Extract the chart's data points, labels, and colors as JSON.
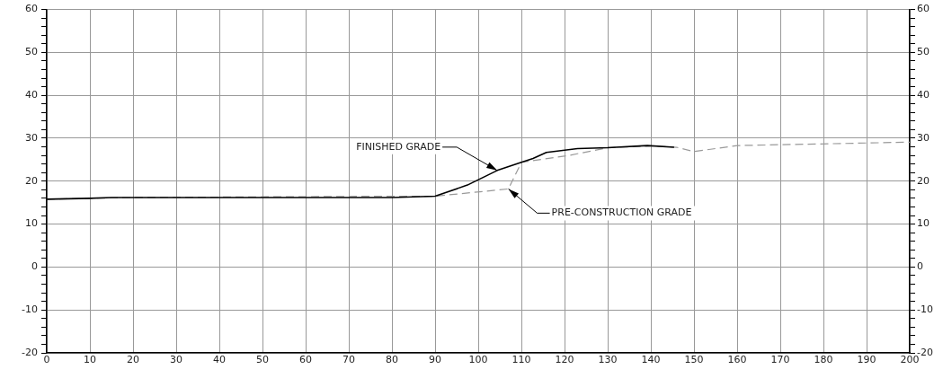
{
  "chart_data": {
    "type": "line",
    "xlim": [
      0,
      200
    ],
    "xticks": [
      0,
      10,
      20,
      30,
      40,
      50,
      60,
      70,
      80,
      90,
      100,
      110,
      120,
      130,
      140,
      150,
      160,
      170,
      180,
      190,
      200
    ],
    "ylim": [
      -20,
      60
    ],
    "yticks": [
      -20,
      {
        "value": -18,
        "label": null
      },
      {
        "value": -16,
        "label": null
      },
      {
        "value": -14,
        "label": null
      },
      {
        "value": -12,
        "label": null
      },
      -10,
      {
        "value": -8,
        "label": null
      },
      {
        "value": -6,
        "label": null
      },
      {
        "value": -4,
        "label": null
      },
      {
        "value": -2,
        "label": null
      },
      0,
      {
        "value": 2,
        "label": null
      },
      {
        "value": 4,
        "label": null
      },
      {
        "value": 6,
        "label": null
      },
      {
        "value": 8,
        "label": null
      },
      10,
      {
        "value": 12,
        "label": null
      },
      {
        "value": 14,
        "label": null
      },
      {
        "value": 16,
        "label": null
      },
      {
        "value": 18,
        "label": null
      },
      20,
      {
        "value": 22,
        "label": null
      },
      {
        "value": 24,
        "label": null
      },
      {
        "value": 26,
        "label": null
      },
      {
        "value": 28,
        "label": null
      },
      30,
      {
        "value": 32,
        "label": null
      },
      {
        "value": 34,
        "label": null
      },
      {
        "value": 36,
        "label": null
      },
      {
        "value": 38,
        "label": null
      },
      40,
      {
        "value": 42,
        "label": null
      },
      {
        "value": 44,
        "label": null
      },
      {
        "value": 46,
        "label": null
      },
      {
        "value": 48,
        "label": null
      },
      50,
      {
        "value": 52,
        "label": null
      },
      {
        "value": 54,
        "label": null
      },
      {
        "value": 56,
        "label": null
      },
      {
        "value": 58,
        "label": null
      },
      60
    ],
    "y2lim": [
      -20,
      60
    ],
    "y2ticks": [
      -20,
      {
        "value": -18,
        "label": null
      },
      {
        "value": -16,
        "label": null
      },
      {
        "value": -14,
        "label": null
      },
      {
        "value": -12,
        "label": null
      },
      -10,
      {
        "value": -8,
        "label": null
      },
      {
        "value": -6,
        "label": null
      },
      {
        "value": -4,
        "label": null
      },
      {
        "value": -2,
        "label": null
      },
      0,
      {
        "value": 2,
        "label": null
      },
      {
        "value": 4,
        "label": null
      },
      {
        "value": 6,
        "label": null
      },
      {
        "value": 8,
        "label": null
      },
      10,
      {
        "value": 12,
        "label": null
      },
      {
        "value": 14,
        "label": null
      },
      {
        "value": 16,
        "label": null
      },
      {
        "value": 18,
        "label": null
      },
      20,
      {
        "value": 22,
        "label": null
      },
      {
        "value": 24,
        "label": null
      },
      {
        "value": 26,
        "label": null
      },
      {
        "value": 28,
        "label": null
      },
      30,
      {
        "value": 32,
        "label": null
      },
      {
        "value": 34,
        "label": null
      },
      {
        "value": 36,
        "label": null
      },
      {
        "value": 38,
        "label": null
      },
      40,
      {
        "value": 42,
        "label": null
      },
      {
        "value": 44,
        "label": null
      },
      {
        "value": 46,
        "label": null
      },
      {
        "value": 48,
        "label": null
      },
      50,
      {
        "value": 52,
        "label": null
      },
      {
        "value": 54,
        "label": null
      },
      {
        "value": 56,
        "label": null
      },
      {
        "value": 58,
        "label": null
      },
      60
    ],
    "grid": true,
    "legend": false,
    "marker": "none",
    "series": [
      {
        "color": "#000000",
        "line_style": "solid",
        "x": [
          0,
          10,
          15,
          80,
          90,
          97.5,
          104.4,
          110,
          112.7,
          115.8,
          123,
          130,
          139.2,
          145.4
        ],
        "values": [
          15.8,
          16,
          16.2,
          16.2,
          16.5,
          19.1,
          22.5,
          24.4,
          25.3,
          26.7,
          27.6,
          27.8,
          28.3,
          27.9
        ]
      },
      {
        "color": "#999999",
        "line_style": "dashed",
        "x": [
          0,
          10,
          20,
          80,
          90,
          107,
          110,
          121,
          130,
          140,
          146,
          150,
          160,
          200
        ],
        "values": [
          15.8,
          16,
          16.2,
          16.5,
          16.5,
          18.2,
          24.4,
          26,
          27.8,
          28.2,
          27.9,
          26.9,
          28.3,
          29.1
        ]
      }
    ],
    "annotations": [
      {
        "text": "FINISHED GRADE",
        "x": 104.4,
        "y": 22.5
      },
      {
        "text": "PRE-CONSTRUCTION GRADE",
        "x": 107,
        "y": 18.2
      }
    ]
  }
}
